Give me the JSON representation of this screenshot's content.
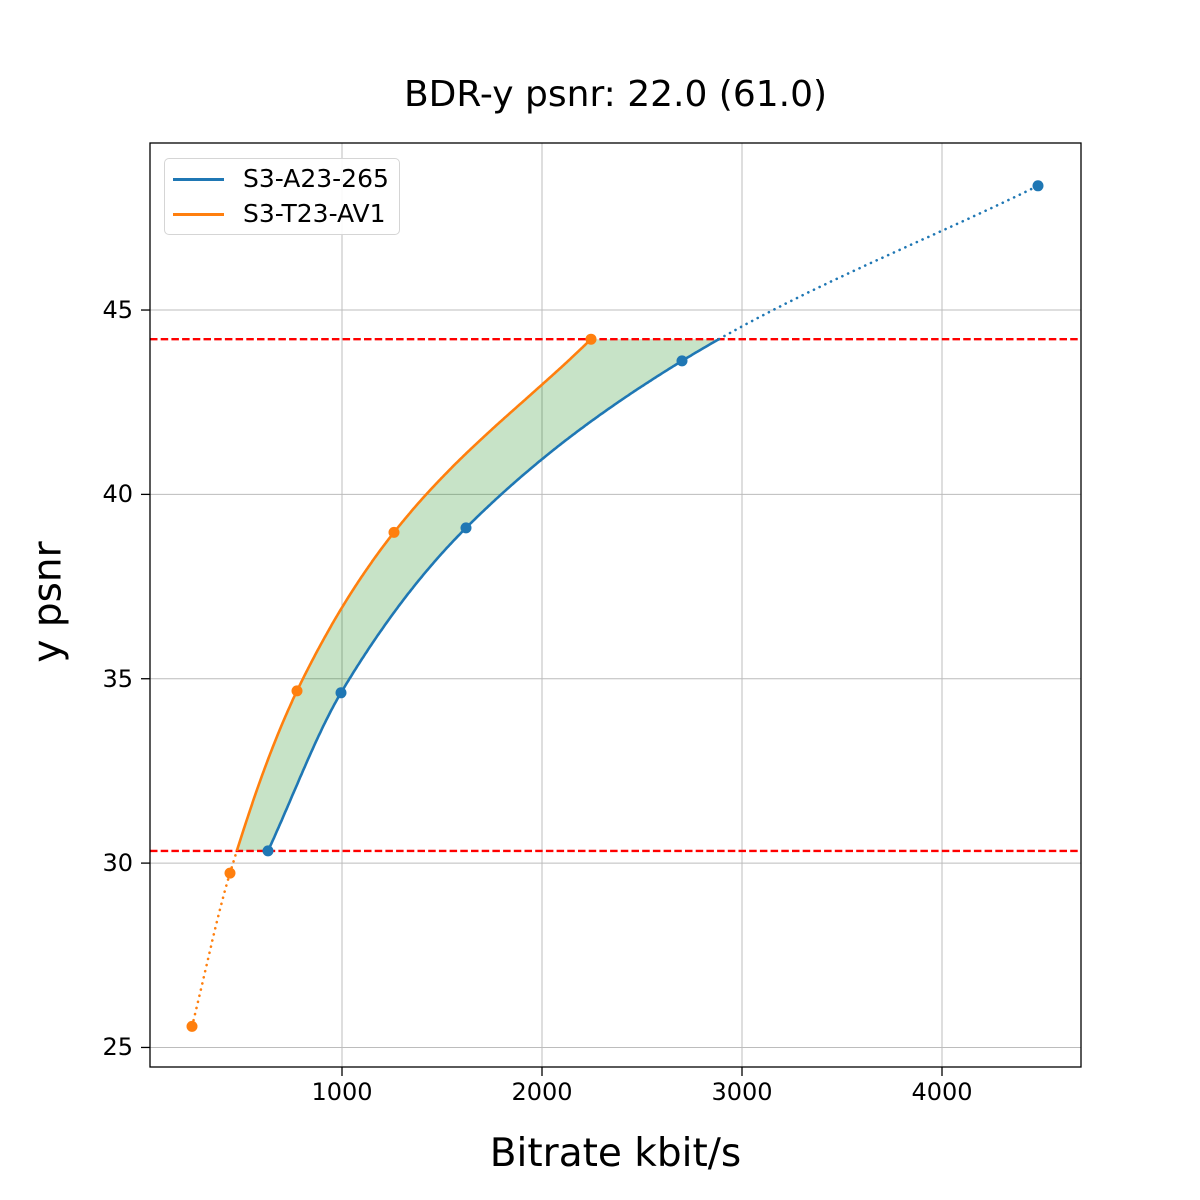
{
  "title": "BDR-y psnr: 22.0 (61.0)",
  "chart_data": {
    "type": "line",
    "title": "BDR-y psnr: 22.0 (61.0)",
    "xlabel": "Bitrate kbit/s",
    "ylabel": "y psnr",
    "xlim": [
      40,
      4695
    ],
    "ylim": [
      24.47,
      49.53
    ],
    "xticks": [
      1000,
      2000,
      3000,
      4000
    ],
    "yticks": [
      25,
      30,
      35,
      40,
      45
    ],
    "grid": true,
    "grid_color": "#bcbcbc",
    "legend_position": "upper left",
    "series": [
      {
        "name": "S3-A23-265",
        "color": "#1f77b4",
        "x": [
          630,
          995,
          1620,
          2700,
          4480
        ],
        "y": [
          30.33,
          34.62,
          39.09,
          43.62,
          48.37
        ],
        "note": "solid within overlap range, dotted extrapolation above upper bound"
      },
      {
        "name": "S3-T23-AV1",
        "color": "#ff7f0e",
        "x": [
          250,
          440,
          775,
          1260,
          2245
        ],
        "y": [
          25.57,
          29.73,
          34.67,
          38.97,
          44.21
        ],
        "note": "solid within overlap range, dotted extrapolation below lower bound"
      }
    ],
    "overlap_bounds_y": [
      30.33,
      44.21
    ],
    "hlines": {
      "values": [
        44.21,
        30.33
      ],
      "color": "#ff0000",
      "style": "dashed"
    },
    "fill_between": {
      "color": "#008000",
      "opacity": 0.22,
      "y_range": [
        30.33,
        44.21
      ]
    }
  }
}
